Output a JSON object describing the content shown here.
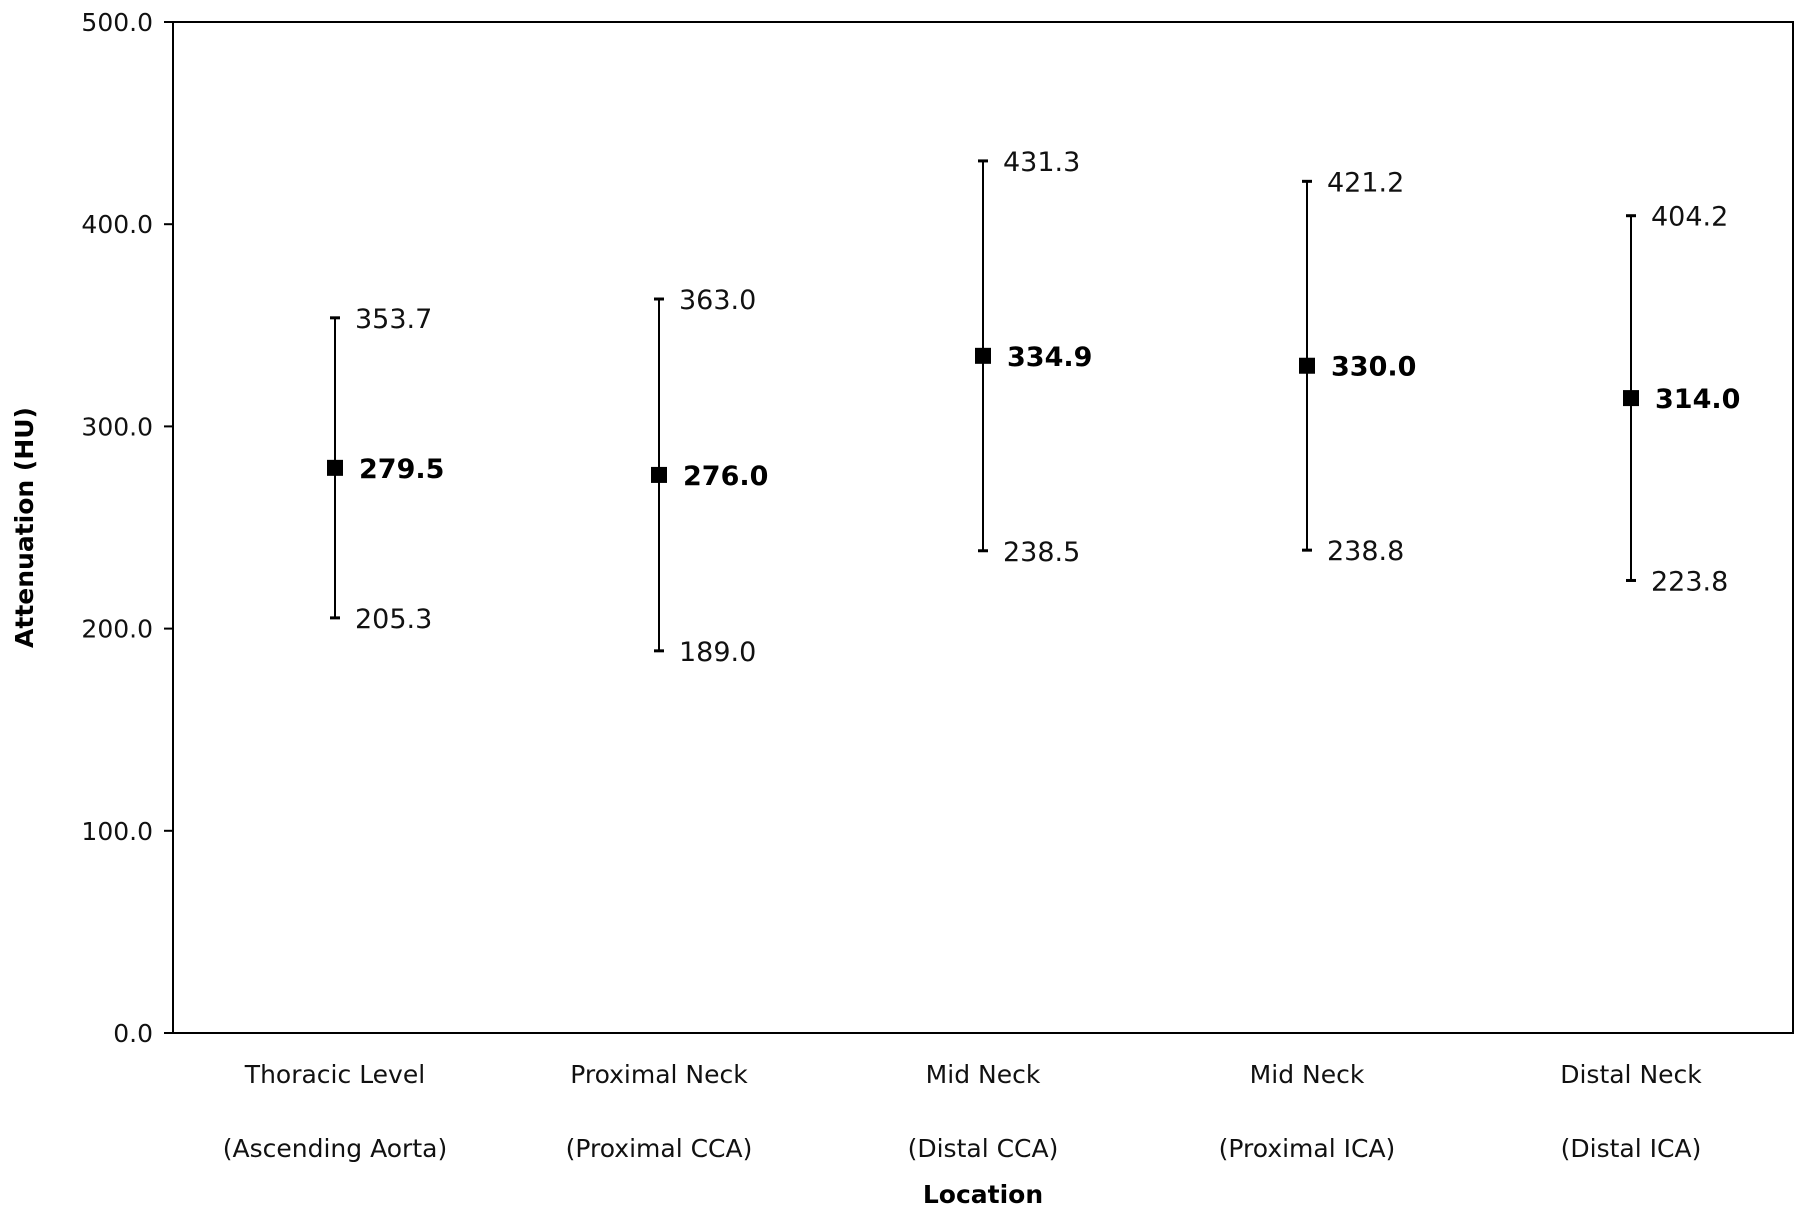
{
  "chart_data": {
    "type": "scatter",
    "title": "",
    "xlabel": "Location",
    "ylabel": "Attenuation (HU)",
    "ylim": [
      0,
      500
    ],
    "yticks": [
      "0.0",
      "100.0",
      "200.0",
      "300.0",
      "400.0",
      "500.0"
    ],
    "grid": false,
    "legend": "none",
    "marker_color": "#000000",
    "categories": [
      {
        "line1": "Thoracic Level",
        "line2": "(Ascending Aorta)",
        "mean": 279.5,
        "low": 205.3,
        "high": 353.7,
        "mean_label": "279.5",
        "low_label": "205.3",
        "high_label": "353.7"
      },
      {
        "line1": "Proximal Neck",
        "line2": "(Proximal CCA)",
        "mean": 276.0,
        "low": 189.0,
        "high": 363.0,
        "mean_label": "276.0",
        "low_label": "189.0",
        "high_label": "363.0"
      },
      {
        "line1": "Mid Neck",
        "line2": "(Distal CCA)",
        "mean": 334.9,
        "low": 238.5,
        "high": 431.3,
        "mean_label": "334.9",
        "low_label": "238.5",
        "high_label": "431.3"
      },
      {
        "line1": "Mid Neck",
        "line2": "(Proximal ICA)",
        "mean": 330.0,
        "low": 238.8,
        "high": 421.2,
        "mean_label": "330.0",
        "low_label": "238.8",
        "high_label": "421.2"
      },
      {
        "line1": "Distal Neck",
        "line2": "(Distal ICA)",
        "mean": 314.0,
        "low": 223.8,
        "high": 404.2,
        "mean_label": "314.0",
        "low_label": "223.8",
        "high_label": "404.2"
      }
    ]
  }
}
